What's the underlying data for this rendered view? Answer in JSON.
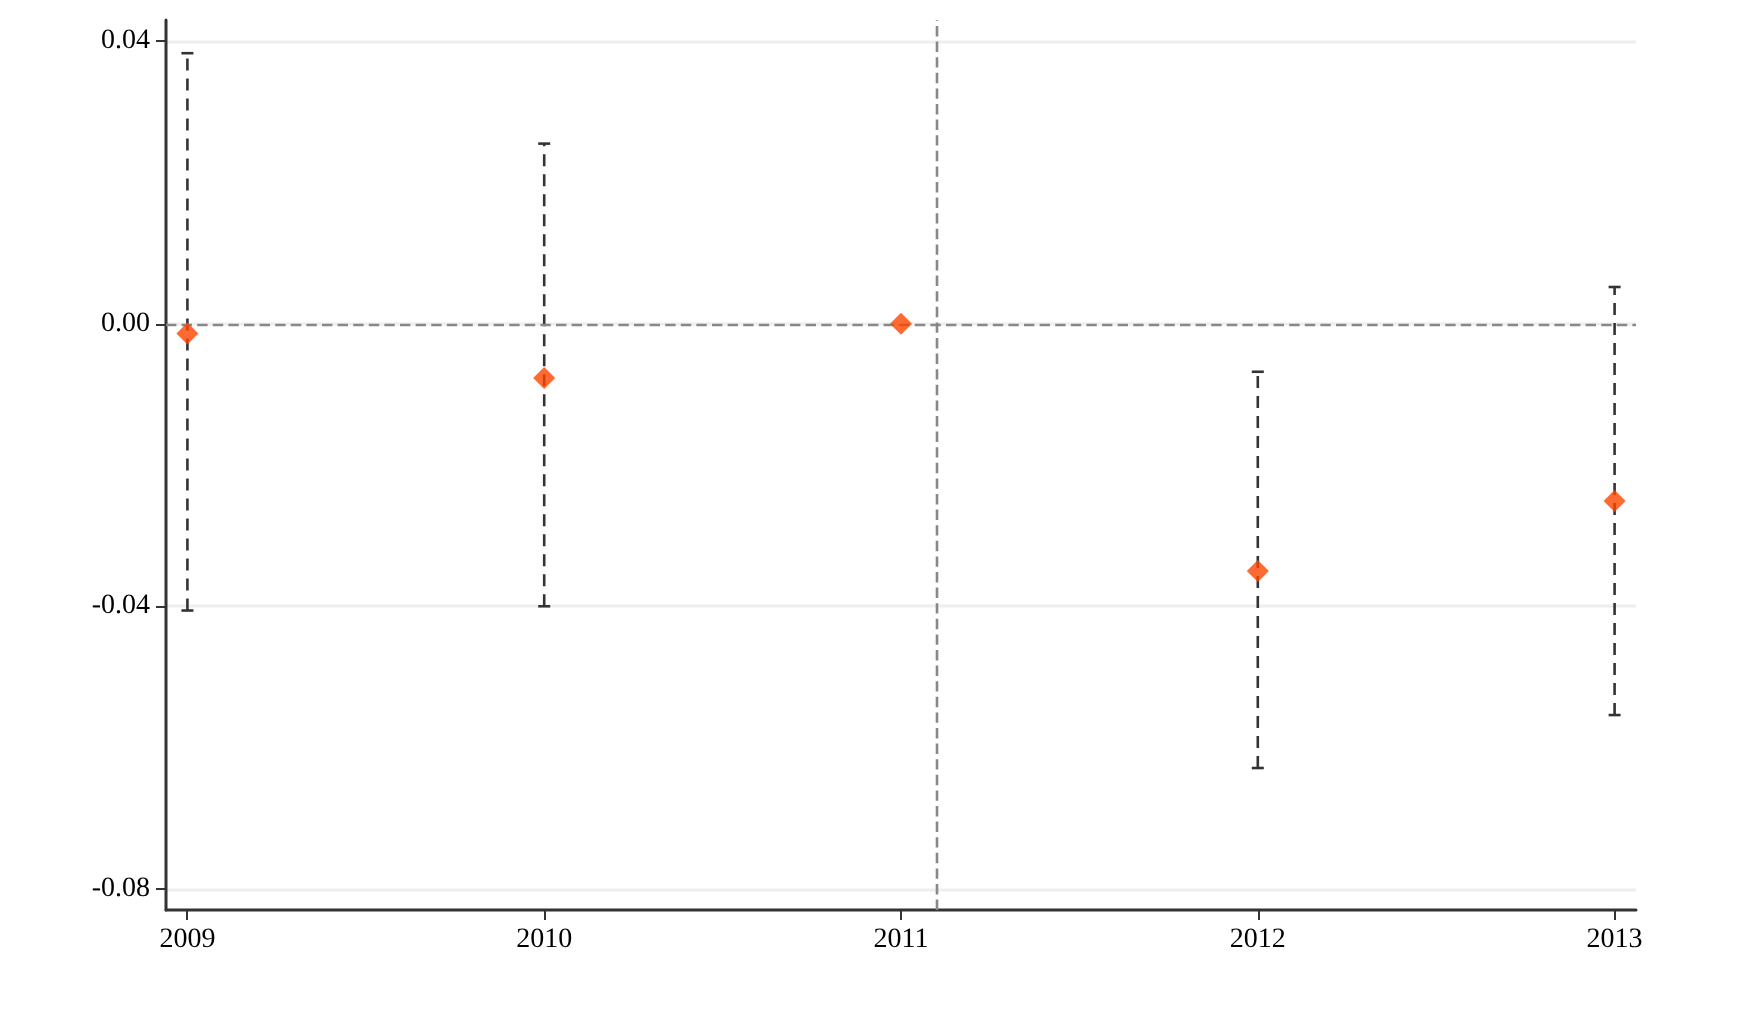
{
  "chart_data": {
    "type": "scatter",
    "x": [
      2009,
      2010,
      2011,
      2012,
      2013
    ],
    "series": [
      {
        "color": "#ff4500",
        "values": [
          -0.0014,
          -0.0077,
          0,
          -0.035,
          -0.0251
        ],
        "errors": [
          [
            -0.0406,
            0.0383
          ],
          [
            -0.04,
            0.0255
          ],
          null,
          [
            -0.0629,
            -0.0068
          ],
          [
            -0.0554,
            0.0052
          ]
        ]
      }
    ],
    "xlim": [
      2008.94,
      2013.06
    ],
    "xticks": [
      2009,
      2010,
      2011,
      2012,
      2013
    ],
    "ylim": [
      -0.083,
      0.043
    ],
    "yticks": [
      {
        "value": -0.08,
        "label": "-0.08"
      },
      {
        "value": -0.04,
        "label": "-0.04"
      },
      {
        "value": 0,
        "label": "0.00"
      },
      {
        "value": 0.04,
        "label": "0.04"
      }
    ],
    "grid": "y",
    "marker": "diamond",
    "ref_lines": [
      {
        "axis": "y",
        "value": 0,
        "color": "#888888",
        "line_style": "dashed"
      },
      {
        "axis": "x",
        "value": 2011.1,
        "color": "#888888",
        "line_style": "dashed"
      }
    ]
  }
}
